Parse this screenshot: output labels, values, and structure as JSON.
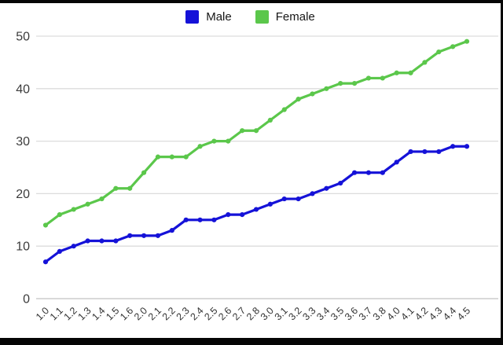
{
  "legend": {
    "items": [
      {
        "label": "Male",
        "color": "#1512d8"
      },
      {
        "label": "Female",
        "color": "#5bc74b"
      }
    ]
  },
  "chart_data": {
    "type": "line",
    "title": "",
    "xlabel": "",
    "ylabel": "",
    "categories": [
      "1.0",
      "1.1",
      "1.2",
      "1.3",
      "1.4",
      "1.5",
      "1.6",
      "2.0",
      "2.1",
      "2.2",
      "2.3",
      "2.4",
      "2.5",
      "2.6",
      "2.7",
      "2.8",
      "3.0",
      "3.1",
      "3.2",
      "3.3",
      "3.4",
      "3.5",
      "3.6",
      "3.7",
      "3.8",
      "4.0",
      "4.1",
      "4.2",
      "4.3",
      "4.4",
      "4.5"
    ],
    "series": [
      {
        "name": "Male",
        "color": "#1512d8",
        "values": [
          7,
          9,
          10,
          11,
          11,
          11,
          12,
          12,
          12,
          13,
          15,
          15,
          15,
          16,
          16,
          17,
          18,
          19,
          19,
          20,
          21,
          22,
          24,
          24,
          24,
          26,
          28,
          28,
          28,
          29,
          29
        ]
      },
      {
        "name": "Female",
        "color": "#5bc74b",
        "values": [
          14,
          16,
          17,
          18,
          19,
          21,
          21,
          24,
          27,
          27,
          27,
          29,
          30,
          30,
          32,
          32,
          34,
          36,
          38,
          39,
          40,
          41,
          41,
          42,
          42,
          43,
          43,
          45,
          47,
          48,
          49
        ]
      }
    ],
    "ylim": [
      0,
      50
    ],
    "yticks": [
      0,
      10,
      20,
      30,
      40,
      50
    ],
    "grid": true,
    "legend_position": "top-center",
    "marker": "circle",
    "x_tick_rotation_deg": -45,
    "gridline_color": "#dcdcdc",
    "zero_line_color": "#c2c2c2",
    "y_tick_label_color": "#3c3c3c",
    "x_tick_label_color": "#333333"
  }
}
